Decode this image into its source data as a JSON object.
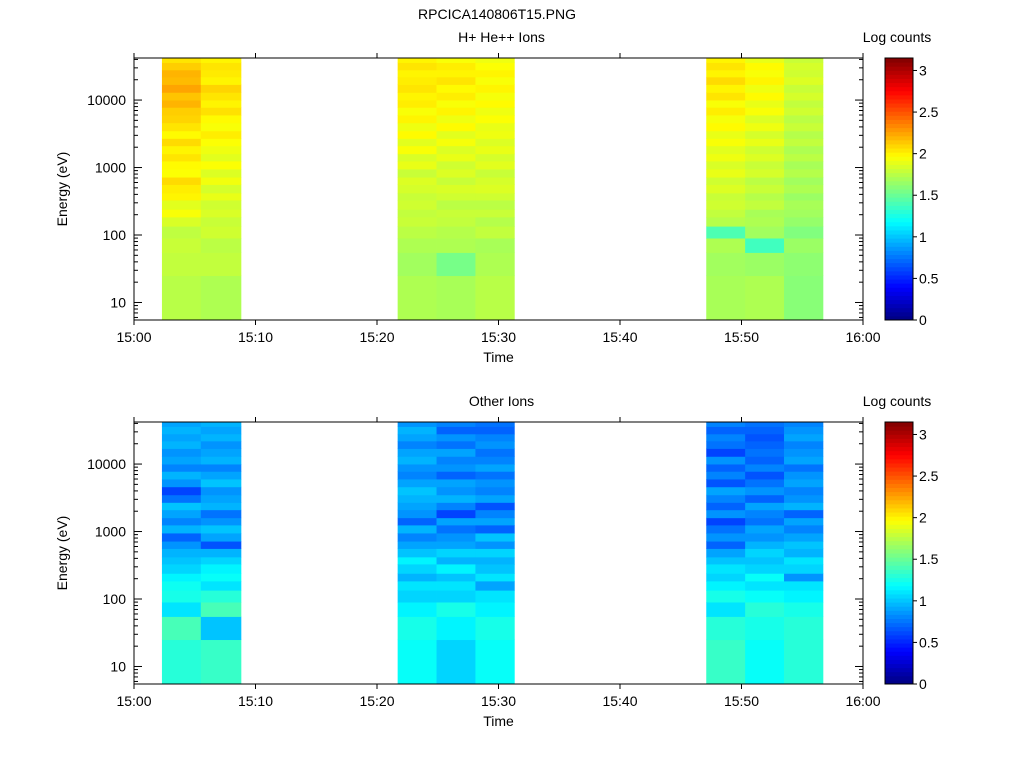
{
  "figure_title": "RPCICA140806T15.PNG",
  "chart_data": [
    {
      "type": "heatmap",
      "title": "H+ He++ Ions",
      "xlabel": "Time",
      "ylabel": "Energy (eV)",
      "colorbar_label": "Log counts",
      "x_ticks": [
        "15:00",
        "15:10",
        "15:20",
        "15:30",
        "15:40",
        "15:50",
        "16:00"
      ],
      "y_ticks": [
        "10",
        "100",
        "1000",
        "10000"
      ],
      "y_scale": "log",
      "ylim": [
        5.5,
        42000
      ],
      "xlim_minutes": [
        0,
        60
      ],
      "colorbar_ticks": [
        "0",
        "0.5",
        "1",
        "1.5",
        "2",
        "2.5",
        "3"
      ],
      "colorbar_range": [
        0,
        3.15
      ],
      "time_columns_minutes": [
        [
          2.3,
          5.5
        ],
        [
          5.5,
          8.8
        ],
        [
          21.7,
          24.9
        ],
        [
          24.9,
          28.1
        ],
        [
          28.1,
          31.3
        ],
        [
          47.1,
          50.3
        ],
        [
          50.3,
          53.5
        ],
        [
          53.5,
          56.7
        ]
      ],
      "energy_levels": [
        5.5,
        25,
        55,
        90,
        135,
        185,
        240,
        330,
        420,
        560,
        720,
        950,
        1250,
        1600,
        2100,
        2700,
        3500,
        4600,
        6000,
        7800,
        10000,
        13000,
        17000,
        22000,
        28000,
        36000,
        42000
      ],
      "log_counts": [
        [
          1.75,
          1.78,
          1.8,
          1.77,
          1.85,
          1.95,
          1.88,
          2.0,
          2.02,
          2.08,
          1.96,
          1.98,
          2.05,
          2.0,
          2.08,
          1.98,
          2.05,
          2.1,
          2.12,
          2.2,
          2.15,
          2.25,
          2.18,
          2.2,
          2.12,
          2.05
        ],
        [
          1.72,
          1.78,
          1.76,
          1.82,
          1.8,
          1.85,
          1.82,
          1.9,
          1.84,
          1.93,
          1.86,
          1.96,
          1.88,
          1.92,
          1.96,
          2.02,
          1.95,
          1.98,
          2.06,
          2.0,
          2.05,
          2.1,
          2.0,
          2.03,
          2.05,
          2.0
        ],
        [
          1.72,
          1.68,
          1.72,
          1.76,
          1.8,
          1.78,
          1.82,
          1.8,
          1.84,
          1.86,
          1.8,
          1.9,
          1.85,
          1.95,
          1.88,
          1.98,
          1.92,
          2.0,
          1.95,
          2.02,
          2.0,
          2.05,
          2.02,
          2.0,
          2.05,
          2.0
        ],
        [
          1.7,
          1.55,
          1.72,
          1.74,
          1.78,
          1.8,
          1.76,
          1.82,
          1.85,
          1.8,
          1.86,
          1.82,
          1.9,
          1.86,
          1.94,
          1.88,
          1.98,
          1.92,
          2.0,
          1.95,
          2.02,
          1.98,
          2.05,
          2.0,
          2.02,
          1.95
        ],
        [
          1.75,
          1.72,
          1.7,
          1.78,
          1.74,
          1.8,
          1.76,
          1.82,
          1.86,
          1.84,
          1.8,
          1.88,
          1.84,
          1.9,
          1.86,
          1.92,
          1.9,
          1.96,
          1.92,
          1.98,
          1.94,
          2.0,
          1.95,
          2.0,
          1.96,
          1.92
        ],
        [
          1.7,
          1.68,
          1.72,
          1.42,
          1.74,
          1.78,
          1.82,
          1.8,
          1.86,
          1.82,
          1.9,
          1.85,
          1.92,
          1.88,
          1.95,
          1.9,
          1.98,
          1.94,
          2.02,
          1.95,
          2.05,
          2.0,
          2.08,
          2.0,
          2.05,
          2.0
        ],
        [
          1.72,
          1.66,
          1.38,
          1.68,
          1.72,
          1.7,
          1.78,
          1.74,
          1.8,
          1.76,
          1.84,
          1.8,
          1.86,
          1.82,
          1.9,
          1.84,
          1.92,
          1.86,
          1.95,
          1.9,
          1.98,
          1.92,
          2.0,
          1.95,
          1.98,
          1.9
        ],
        [
          1.6,
          1.62,
          1.66,
          1.58,
          1.64,
          1.68,
          1.7,
          1.66,
          1.72,
          1.68,
          1.74,
          1.7,
          1.76,
          1.72,
          1.78,
          1.74,
          1.8,
          1.76,
          1.82,
          1.78,
          1.84,
          1.8,
          1.86,
          1.82,
          1.84,
          1.8
        ]
      ]
    },
    {
      "type": "heatmap",
      "title": "Other Ions",
      "xlabel": "Time",
      "ylabel": "Energy (eV)",
      "colorbar_label": "Log counts",
      "x_ticks": [
        "15:00",
        "15:10",
        "15:20",
        "15:30",
        "15:40",
        "15:50",
        "16:00"
      ],
      "y_ticks": [
        "10",
        "100",
        "1000",
        "10000"
      ],
      "y_scale": "log",
      "ylim": [
        5.5,
        42000
      ],
      "xlim_minutes": [
        0,
        60
      ],
      "colorbar_ticks": [
        "0",
        "0.5",
        "1",
        "1.5",
        "2",
        "2.5",
        "3"
      ],
      "colorbar_range": [
        0,
        3.15
      ],
      "time_columns_minutes": [
        [
          2.3,
          5.5
        ],
        [
          5.5,
          8.8
        ],
        [
          21.7,
          24.9
        ],
        [
          24.9,
          28.1
        ],
        [
          28.1,
          31.3
        ],
        [
          47.1,
          50.3
        ],
        [
          50.3,
          53.5
        ],
        [
          53.5,
          56.7
        ]
      ],
      "energy_levels": [
        5.5,
        25,
        55,
        90,
        135,
        185,
        240,
        330,
        420,
        560,
        720,
        950,
        1250,
        1600,
        2100,
        2700,
        3500,
        4600,
        6000,
        7800,
        10000,
        13000,
        17000,
        22000,
        28000,
        36000,
        42000
      ],
      "log_counts": [
        [
          1.3,
          1.4,
          1.1,
          1.25,
          1.22,
          1.15,
          1.05,
          1.0,
          0.95,
          0.85,
          0.7,
          0.95,
          0.8,
          0.9,
          1.0,
          0.75,
          0.6,
          0.85,
          0.95,
          0.8,
          0.9,
          0.85,
          0.95,
          0.9,
          0.95,
          0.9
        ],
        [
          1.35,
          1.0,
          1.4,
          1.3,
          1.1,
          1.2,
          1.15,
          1.05,
          0.95,
          0.65,
          0.9,
          1.0,
          0.85,
          0.75,
          0.95,
          0.9,
          0.85,
          1.0,
          0.9,
          0.8,
          0.95,
          0.9,
          0.85,
          0.95,
          0.9,
          0.95
        ],
        [
          1.2,
          1.25,
          1.15,
          1.05,
          1.1,
          0.95,
          1.05,
          1.15,
          1.0,
          0.9,
          0.8,
          0.95,
          0.7,
          0.85,
          0.9,
          0.95,
          1.0,
          0.9,
          0.8,
          0.85,
          0.95,
          0.9,
          0.8,
          0.9,
          0.95,
          0.85
        ],
        [
          1.05,
          1.15,
          1.25,
          1.05,
          1.1,
          1.0,
          1.15,
          0.95,
          1.05,
          0.9,
          0.85,
          0.75,
          0.9,
          0.6,
          0.8,
          0.95,
          0.85,
          0.9,
          0.7,
          0.85,
          0.8,
          0.9,
          0.75,
          0.85,
          0.7,
          0.8
        ],
        [
          1.2,
          1.25,
          1.15,
          1.1,
          0.9,
          1.1,
          1.0,
          0.95,
          1.05,
          0.85,
          1.0,
          0.7,
          0.9,
          0.8,
          0.65,
          0.9,
          0.8,
          0.85,
          0.75,
          0.9,
          0.8,
          0.75,
          0.85,
          0.8,
          0.7,
          0.75
        ],
        [
          1.35,
          1.3,
          1.1,
          1.25,
          1.15,
          1.05,
          1.1,
          1.0,
          0.9,
          0.7,
          0.85,
          0.75,
          0.6,
          0.85,
          0.7,
          0.8,
          0.9,
          0.65,
          0.8,
          0.7,
          0.85,
          0.6,
          0.75,
          0.8,
          0.7,
          0.8
        ],
        [
          1.2,
          1.25,
          1.3,
          1.2,
          1.1,
          1.2,
          1.05,
          1.0,
          1.05,
          0.95,
          0.85,
          0.9,
          0.75,
          0.8,
          0.9,
          0.7,
          0.85,
          0.75,
          0.65,
          0.8,
          0.7,
          0.75,
          0.7,
          0.65,
          0.7,
          0.75
        ],
        [
          1.3,
          1.3,
          1.25,
          1.15,
          1.1,
          0.85,
          1.05,
          1.1,
          0.95,
          1.0,
          0.9,
          0.8,
          0.9,
          0.7,
          0.95,
          0.85,
          0.8,
          0.9,
          0.85,
          0.75,
          0.9,
          0.85,
          0.8,
          0.9,
          0.85,
          0.8
        ]
      ]
    }
  ]
}
